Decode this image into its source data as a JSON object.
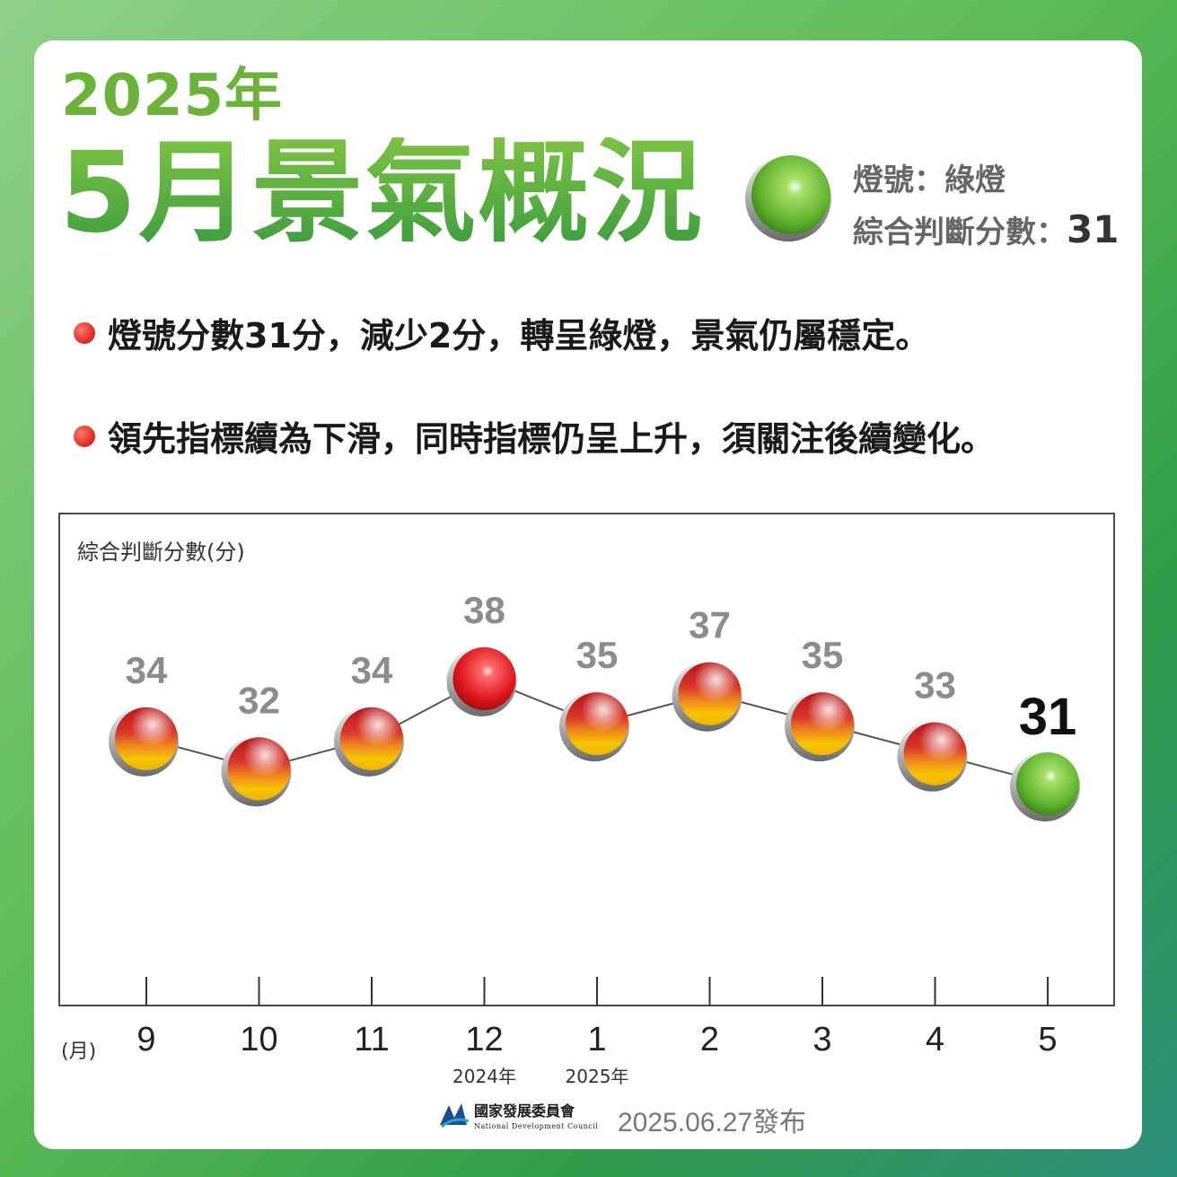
{
  "header": {
    "year_title": "2025年",
    "month_title": "5月景氣概況",
    "signal_label": "燈號：綠燈",
    "score_label": "綜合判斷分數：",
    "score_value": "31"
  },
  "bullets": [
    "燈號分數31分，減少2分，轉呈綠燈，景氣仍屬穩定。",
    "領先指標續為下滑，同時指標仍呈上升，須關注後續變化。"
  ],
  "chart_data": {
    "type": "line",
    "ylabel": "綜合判斷分數(分)",
    "xlabel": "(月)",
    "categories": [
      "9",
      "10",
      "11",
      "12",
      "1",
      "2",
      "3",
      "4",
      "5"
    ],
    "year_labels": [
      {
        "index": 3,
        "text": "2024年"
      },
      {
        "index": 4,
        "text": "2025年"
      }
    ],
    "values": [
      34,
      32,
      34,
      38,
      35,
      37,
      35,
      33,
      31
    ],
    "signals": [
      "yellow-red",
      "yellow-red",
      "yellow-red",
      "red",
      "yellow-red",
      "yellow-red",
      "yellow-red",
      "yellow-red",
      "green"
    ],
    "highlight_index": 8,
    "ylim": [
      31,
      38
    ],
    "grid": false,
    "legend": "none"
  },
  "colors": {
    "green_light": "#6ec23a",
    "red_light": "#e0161c",
    "yellow_red_top": "#c81e1e",
    "yellow_red_bottom": "#f5c400",
    "value_label": "#8c8c8c",
    "highlight_label": "#111111",
    "title_green": "#6cb33a"
  },
  "footer": {
    "org_name": "國家發展委員會",
    "org_name_en": "National Development Council",
    "release": "2025.06.27發布"
  }
}
